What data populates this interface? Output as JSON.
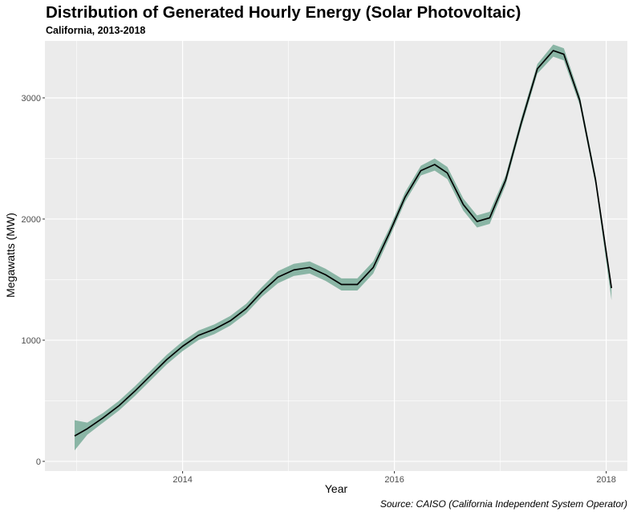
{
  "chart_data": {
    "type": "line",
    "title": "Distribution of Generated Hourly Energy (Solar Photovoltaic)",
    "subtitle": "California, 2013-2018",
    "xlabel": "Year",
    "ylabel": "Megawatts (MW)",
    "caption": "Source: CAISO (California Independent System Operator)",
    "xlim": [
      2012.7,
      2018.2
    ],
    "ylim": [
      -80,
      3470
    ],
    "x_ticks": [
      2014,
      2016,
      2018
    ],
    "x_minor_ticks": [
      2013,
      2015,
      2017
    ],
    "y_ticks": [
      0,
      1000,
      2000,
      3000
    ],
    "y_minor_ticks": [
      500,
      1500,
      2500
    ],
    "grid": true,
    "colors": {
      "panel_background": "#ebebeb",
      "grid": "#ffffff",
      "ribbon": "#8ab5a5",
      "line": "#000000"
    },
    "series": [
      {
        "x": [
          2012.98,
          2013.1,
          2013.25,
          2013.4,
          2013.55,
          2013.7,
          2013.85,
          2014.0,
          2014.15,
          2014.3,
          2014.45,
          2014.6,
          2014.75,
          2014.9,
          2015.05,
          2015.2,
          2015.35,
          2015.5,
          2015.65,
          2015.8,
          2015.95,
          2016.1,
          2016.25,
          2016.38,
          2016.5,
          2016.65,
          2016.78,
          2016.9,
          2017.05,
          2017.2,
          2017.35,
          2017.5,
          2017.6,
          2017.75,
          2017.9,
          2018.05
        ],
        "y": [
          210,
          270,
          360,
          460,
          580,
          710,
          840,
          950,
          1040,
          1090,
          1160,
          1260,
          1400,
          1520,
          1580,
          1600,
          1540,
          1460,
          1460,
          1600,
          1880,
          2180,
          2400,
          2450,
          2380,
          2120,
          1980,
          2010,
          2320,
          2800,
          3240,
          3390,
          3360,
          2980,
          2320,
          1430
        ],
        "lower": [
          90,
          220,
          320,
          420,
          540,
          670,
          800,
          910,
          1000,
          1050,
          1120,
          1220,
          1360,
          1470,
          1530,
          1550,
          1490,
          1410,
          1410,
          1550,
          1840,
          2140,
          2360,
          2400,
          2330,
          2070,
          1930,
          1960,
          2280,
          2760,
          3200,
          3340,
          3310,
          2940,
          2280,
          1330
        ],
        "upper": [
          340,
          320,
          400,
          500,
          620,
          750,
          880,
          990,
          1080,
          1130,
          1200,
          1300,
          1440,
          1570,
          1630,
          1650,
          1590,
          1510,
          1510,
          1650,
          1920,
          2220,
          2440,
          2500,
          2430,
          2170,
          2030,
          2060,
          2360,
          2840,
          3280,
          3440,
          3410,
          3020,
          2360,
          1460
        ]
      }
    ]
  }
}
